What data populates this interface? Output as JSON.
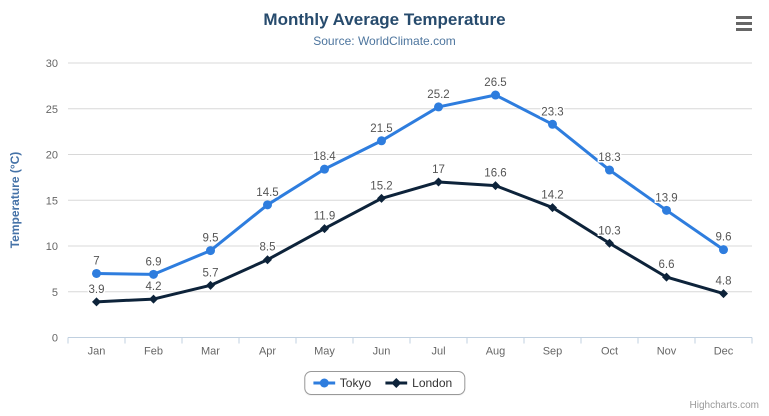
{
  "chart_data": {
    "type": "line",
    "title": "Monthly Average Temperature",
    "subtitle": "Source: WorldClimate.com",
    "xlabel": "",
    "ylabel": "Temperature (°C)",
    "categories": [
      "Jan",
      "Feb",
      "Mar",
      "Apr",
      "May",
      "Jun",
      "Jul",
      "Aug",
      "Sep",
      "Oct",
      "Nov",
      "Dec"
    ],
    "series": [
      {
        "name": "Tokyo",
        "marker": "circle",
        "color": "#2e7dde",
        "values": [
          7,
          6.9,
          9.5,
          14.5,
          18.4,
          21.5,
          25.2,
          26.5,
          23.3,
          18.3,
          13.9,
          9.6
        ]
      },
      {
        "name": "London",
        "marker": "diamond",
        "color": "#0d233a",
        "values": [
          3.9,
          4.2,
          5.7,
          8.5,
          11.9,
          15.2,
          17,
          16.6,
          14.2,
          10.3,
          6.6,
          4.8
        ]
      }
    ],
    "ylim": [
      0,
      30
    ],
    "ytick_step": 5,
    "grid": true,
    "legend_position": "bottom",
    "data_labels": true
  },
  "colors": {
    "title": "#274b6d",
    "subtitle": "#4d759e",
    "axis_title": "#4572a7",
    "axis_labels": "#666666",
    "data_labels": "#555555",
    "gridline": "#d8d8d8",
    "axis_line": "#c0d0e0"
  },
  "credits": {
    "label": "Highcharts.com"
  },
  "menu": {
    "icon": "hamburger-menu"
  }
}
